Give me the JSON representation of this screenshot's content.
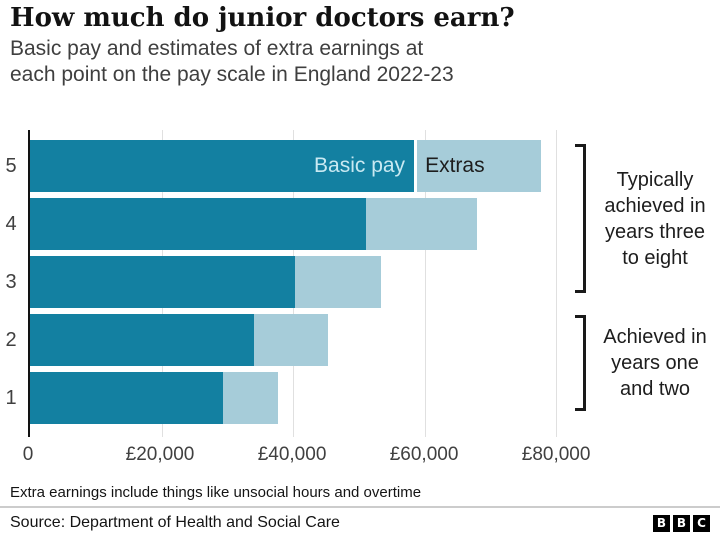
{
  "header": {
    "title": "How much do junior doctors earn?",
    "subtitle_line1": "Basic pay and estimates of extra earnings at",
    "subtitle_line2": "each point on the pay scale in England 2022-23"
  },
  "chart_data": {
    "type": "bar",
    "orientation": "horizontal",
    "stacked": true,
    "title": "How much do junior doctors earn?",
    "subtitle": "Basic pay and estimates of extra earnings at each point on the pay scale in England 2022-23",
    "categories": [
      "5",
      "4",
      "3",
      "2",
      "1"
    ],
    "series": [
      {
        "name": "Basic pay",
        "color": "#1380a1",
        "values": [
          58398,
          51017,
          40257,
          34012,
          29384
        ]
      },
      {
        "name": "Extras",
        "color": "#a6ccd9",
        "values": [
          18800,
          17000,
          13100,
          11300,
          8400
        ]
      }
    ],
    "x_ticks": [
      {
        "value": 0,
        "label": "0"
      },
      {
        "value": 20000,
        "label": "£20,000"
      },
      {
        "value": 40000,
        "label": "£40,000"
      },
      {
        "value": 60000,
        "label": "£60,000"
      },
      {
        "value": 80000,
        "label": "£80,000"
      }
    ],
    "xlim": [
      0,
      81500
    ],
    "grid": "vertical",
    "legend_position": "inside-top-bar",
    "annotations": [
      {
        "text": "Typically achieved in years three to eight",
        "lines": [
          "Typically",
          "achieved in",
          "years three",
          "to eight"
        ],
        "applies_to": "pay points 3 to 5"
      },
      {
        "text": "Achieved in years one and two",
        "lines": [
          "Achieved in",
          "years one",
          "and two"
        ],
        "applies_to": "pay points 1 and 2"
      }
    ]
  },
  "footer": {
    "note": "Extra earnings include things like unsocial hours and overtime",
    "source": "Source: Department of Health and Social Care",
    "logo_letters": [
      "B",
      "B",
      "C"
    ]
  },
  "colors": {
    "basic_pay": "#1380a1",
    "extras": "#a6ccd9",
    "legend_basic_text": "#c9e9f2",
    "text_dark": "#1d1d1d",
    "text_gray": "#404040",
    "gridline": "#e0e0e0",
    "axis": "#121212"
  }
}
